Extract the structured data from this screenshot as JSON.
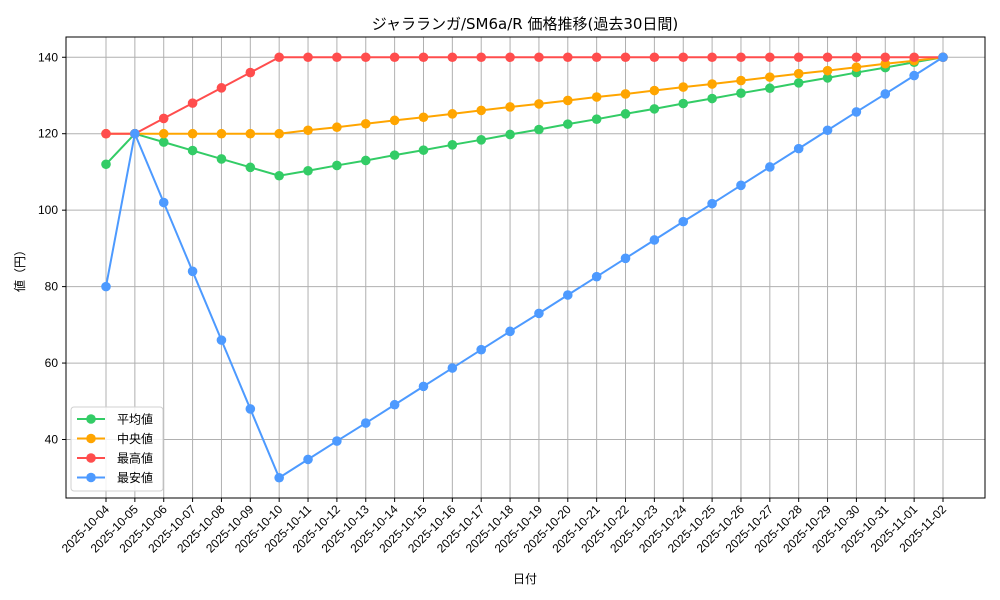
{
  "chart_data": {
    "type": "line",
    "title": "ジャラランガ/SM6a/R 価格推移(過去30日間)",
    "xlabel": "日付",
    "ylabel": "値（円）",
    "ylim": [
      24.7,
      145.3
    ],
    "yticks": [
      40,
      60,
      80,
      100,
      120,
      140
    ],
    "grid": true,
    "legend_position": "lower left",
    "categories": [
      "2025-10-04",
      "2025-10-05",
      "2025-10-06",
      "2025-10-07",
      "2025-10-08",
      "2025-10-09",
      "2025-10-10",
      "2025-10-11",
      "2025-10-12",
      "2025-10-13",
      "2025-10-14",
      "2025-10-15",
      "2025-10-16",
      "2025-10-17",
      "2025-10-18",
      "2025-10-19",
      "2025-10-20",
      "2025-10-21",
      "2025-10-22",
      "2025-10-23",
      "2025-10-24",
      "2025-10-25",
      "2025-10-26",
      "2025-10-27",
      "2025-10-28",
      "2025-10-29",
      "2025-10-30",
      "2025-10-31",
      "2025-11-01",
      "2025-11-02"
    ],
    "series": [
      {
        "name": "平均値",
        "color": "#33cc66",
        "values": [
          112,
          120,
          117.8,
          115.6,
          113.4,
          111.2,
          109,
          110.3,
          111.7,
          113,
          114.4,
          115.7,
          117.1,
          118.4,
          119.8,
          121.1,
          122.5,
          123.8,
          125.2,
          126.5,
          127.9,
          129.2,
          130.6,
          131.9,
          133.3,
          134.6,
          136,
          137.3,
          138.7,
          140
        ]
      },
      {
        "name": "中央値",
        "color": "#ffa500",
        "values": [
          120,
          120,
          120,
          120,
          120,
          120,
          120,
          120.9,
          121.7,
          122.6,
          123.5,
          124.3,
          125.2,
          126.1,
          127,
          127.8,
          128.7,
          129.6,
          130.4,
          131.3,
          132.2,
          133,
          133.9,
          134.8,
          135.7,
          136.5,
          137.4,
          138.3,
          139.1,
          140
        ]
      },
      {
        "name": "最高値",
        "color": "#ff4d4d",
        "values": [
          120,
          120,
          124,
          128,
          132,
          136,
          140,
          140,
          140,
          140,
          140,
          140,
          140,
          140,
          140,
          140,
          140,
          140,
          140,
          140,
          140,
          140,
          140,
          140,
          140,
          140,
          140,
          140,
          140,
          140
        ]
      },
      {
        "name": "最安値",
        "color": "#4d9aff",
        "values": [
          80,
          120,
          102,
          84,
          66,
          48,
          30,
          34.8,
          39.6,
          44.3,
          49.1,
          53.9,
          58.7,
          63.5,
          68.3,
          73,
          77.8,
          82.6,
          87.4,
          92.2,
          97,
          101.7,
          106.5,
          111.3,
          116.1,
          120.9,
          125.7,
          130.4,
          135.2,
          140
        ]
      }
    ]
  }
}
